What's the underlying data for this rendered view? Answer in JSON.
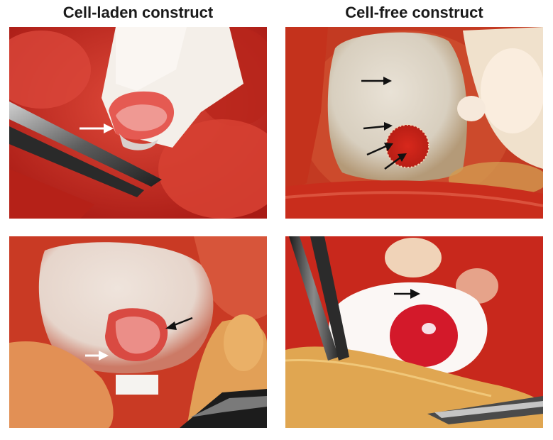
{
  "headings": {
    "left": "Cell-laden construct",
    "right": "Cell-free construct"
  },
  "colors": {
    "tissue_red": "#c92a21",
    "tissue_dark": "#8e1410",
    "cartilage_white": "#f2ece6",
    "arrow_white": "#ffffff",
    "arrow_black": "#111111"
  },
  "panels": [
    {
      "id": "top-left",
      "content": "cell-laden construct held by forceps on cartilage defect",
      "arrows": [
        {
          "color": "white"
        }
      ]
    },
    {
      "id": "top-right",
      "content": "cell-free construct implanted in cartilage",
      "arrows": [
        {
          "color": "black"
        },
        {
          "color": "black"
        },
        {
          "color": "black"
        },
        {
          "color": "black"
        }
      ]
    },
    {
      "id": "bottom-left",
      "content": "cell-laden construct on femoral condyle",
      "arrows": [
        {
          "color": "white"
        },
        {
          "color": "black"
        }
      ]
    },
    {
      "id": "bottom-right",
      "content": "cell-free construct in cartilage defect",
      "arrows": [
        {
          "color": "black"
        }
      ]
    }
  ]
}
